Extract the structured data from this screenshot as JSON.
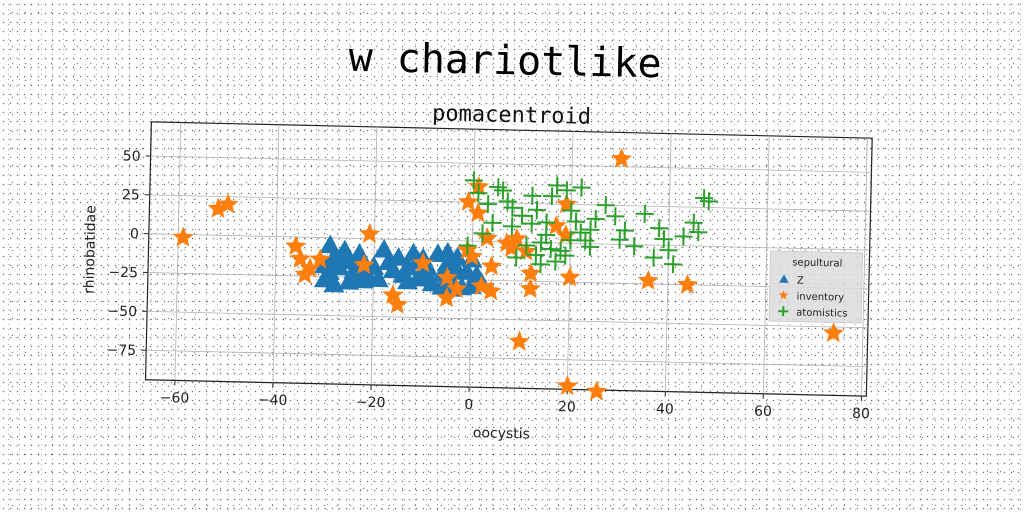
{
  "suptitle": "w chariotlike",
  "chart_data": {
    "type": "scatter",
    "title": "pomacentroid",
    "xlabel": "oocystis",
    "ylabel": "rhinobatidae",
    "xlim": [
      -66,
      81
    ],
    "ylim": [
      -94,
      72
    ],
    "xticks": [
      -60,
      -40,
      -20,
      0,
      20,
      40,
      60,
      80
    ],
    "yticks": [
      -75,
      -50,
      -25,
      0,
      25,
      50
    ],
    "grid": true,
    "legend": {
      "title": "sepultural",
      "placement": "center-right"
    },
    "series": [
      {
        "name": "Z",
        "marker": "triangle",
        "color": "#1f77b4",
        "points": [
          [
            -29,
            -5
          ],
          [
            -28,
            -12
          ],
          [
            -27,
            -19
          ],
          [
            -26,
            -8
          ],
          [
            -25,
            -15
          ],
          [
            -24,
            -21
          ],
          [
            -23,
            -10
          ],
          [
            -22,
            -17
          ],
          [
            -29,
            -22
          ],
          [
            -30,
            -27
          ],
          [
            -28,
            -30
          ],
          [
            -25,
            -28
          ],
          [
            -23,
            -26
          ],
          [
            -21,
            -25
          ],
          [
            -30,
            -18
          ],
          [
            -27,
            -14
          ],
          [
            -18,
            -7
          ],
          [
            -17,
            -15
          ],
          [
            -16,
            -20
          ],
          [
            -15,
            -12
          ],
          [
            -14,
            -23
          ],
          [
            -13,
            -18
          ],
          [
            -12,
            -9
          ],
          [
            -11,
            -25
          ],
          [
            -19,
            -26
          ],
          [
            -20,
            -18
          ],
          [
            -22,
            -27
          ],
          [
            -10,
            -12
          ],
          [
            -9,
            -18
          ],
          [
            -8,
            -28
          ],
          [
            -7,
            -9
          ],
          [
            -6,
            -22
          ],
          [
            -5,
            -15
          ],
          [
            -4,
            -26
          ],
          [
            -3,
            -11
          ],
          [
            -2,
            -30
          ],
          [
            -1,
            -20
          ],
          [
            0,
            -12
          ],
          [
            -5,
            -8
          ],
          [
            -3,
            -19
          ],
          [
            1,
            -22
          ],
          [
            2,
            -27
          ],
          [
            0,
            -29
          ],
          [
            -4,
            -31
          ],
          [
            -6,
            -30
          ],
          [
            -9,
            -24
          ],
          [
            -11,
            -14
          ],
          [
            -13,
            -27
          ]
        ]
      },
      {
        "name": "inventory",
        "marker": "star",
        "color": "#ff7f0e",
        "points": [
          [
            -59,
            -2
          ],
          [
            -52,
            17
          ],
          [
            -50,
            20
          ],
          [
            -36,
            -6
          ],
          [
            -35,
            -14
          ],
          [
            -34,
            -24
          ],
          [
            -33,
            -20
          ],
          [
            -31,
            -14
          ],
          [
            -21,
            3
          ],
          [
            -22,
            -17
          ],
          [
            -16,
            -36
          ],
          [
            -15,
            -42
          ],
          [
            -10,
            -15
          ],
          [
            -5,
            -24
          ],
          [
            -5,
            -37
          ],
          [
            -3,
            -31
          ],
          [
            -1,
            25
          ],
          [
            -1,
            -6
          ],
          [
            0,
            -10
          ],
          [
            1,
            35
          ],
          [
            1,
            18
          ],
          [
            2,
            -29
          ],
          [
            3,
            2
          ],
          [
            4,
            -16
          ],
          [
            4,
            -32
          ],
          [
            7,
            -1
          ],
          [
            8,
            -4
          ],
          [
            9,
            2
          ],
          [
            11,
            -6
          ],
          [
            10,
            -64
          ],
          [
            12,
            -20
          ],
          [
            12,
            -30
          ],
          [
            17,
            11
          ],
          [
            19,
            25
          ],
          [
            19,
            5
          ],
          [
            20,
            -22
          ],
          [
            20,
            -92
          ],
          [
            26,
            -95
          ],
          [
            30,
            55
          ],
          [
            36,
            -23
          ],
          [
            44,
            -25
          ],
          [
            74,
            -54
          ]
        ]
      },
      {
        "name": "atomistics",
        "marker": "plus",
        "color": "#2ca02c",
        "points": [
          [
            0,
            39
          ],
          [
            1,
            31
          ],
          [
            3,
            24
          ],
          [
            5,
            35
          ],
          [
            6,
            33
          ],
          [
            7,
            26
          ],
          [
            8,
            22
          ],
          [
            4,
            12
          ],
          [
            2,
            5
          ],
          [
            -1,
            -3
          ],
          [
            10,
            17
          ],
          [
            12,
            12
          ],
          [
            11,
            -2
          ],
          [
            13,
            -8
          ],
          [
            14,
            -14
          ],
          [
            15,
            5
          ],
          [
            16,
            -4
          ],
          [
            17,
            -12
          ],
          [
            15,
            13
          ],
          [
            16,
            30
          ],
          [
            17,
            37
          ],
          [
            19,
            34
          ],
          [
            20,
            21
          ],
          [
            21,
            14
          ],
          [
            22,
            7
          ],
          [
            23,
            2
          ],
          [
            24,
            9
          ],
          [
            25,
            16
          ],
          [
            18,
            -5
          ],
          [
            13,
            21
          ],
          [
            12,
            30
          ],
          [
            20,
            2
          ],
          [
            29,
            18
          ],
          [
            31,
            9
          ],
          [
            35,
            20
          ],
          [
            38,
            11
          ],
          [
            39,
            4
          ],
          [
            40,
            -3
          ],
          [
            43,
            6
          ],
          [
            45,
            15
          ],
          [
            46,
            9
          ],
          [
            47,
            31
          ],
          [
            48,
            29
          ],
          [
            22,
            36
          ],
          [
            27,
            25
          ],
          [
            14,
            0
          ],
          [
            19,
            -8
          ],
          [
            24,
            -2
          ],
          [
            30,
            3
          ],
          [
            33,
            -1
          ],
          [
            37,
            -8
          ],
          [
            41,
            -12
          ],
          [
            8,
            10
          ],
          [
            9,
            -10
          ]
        ]
      }
    ]
  }
}
